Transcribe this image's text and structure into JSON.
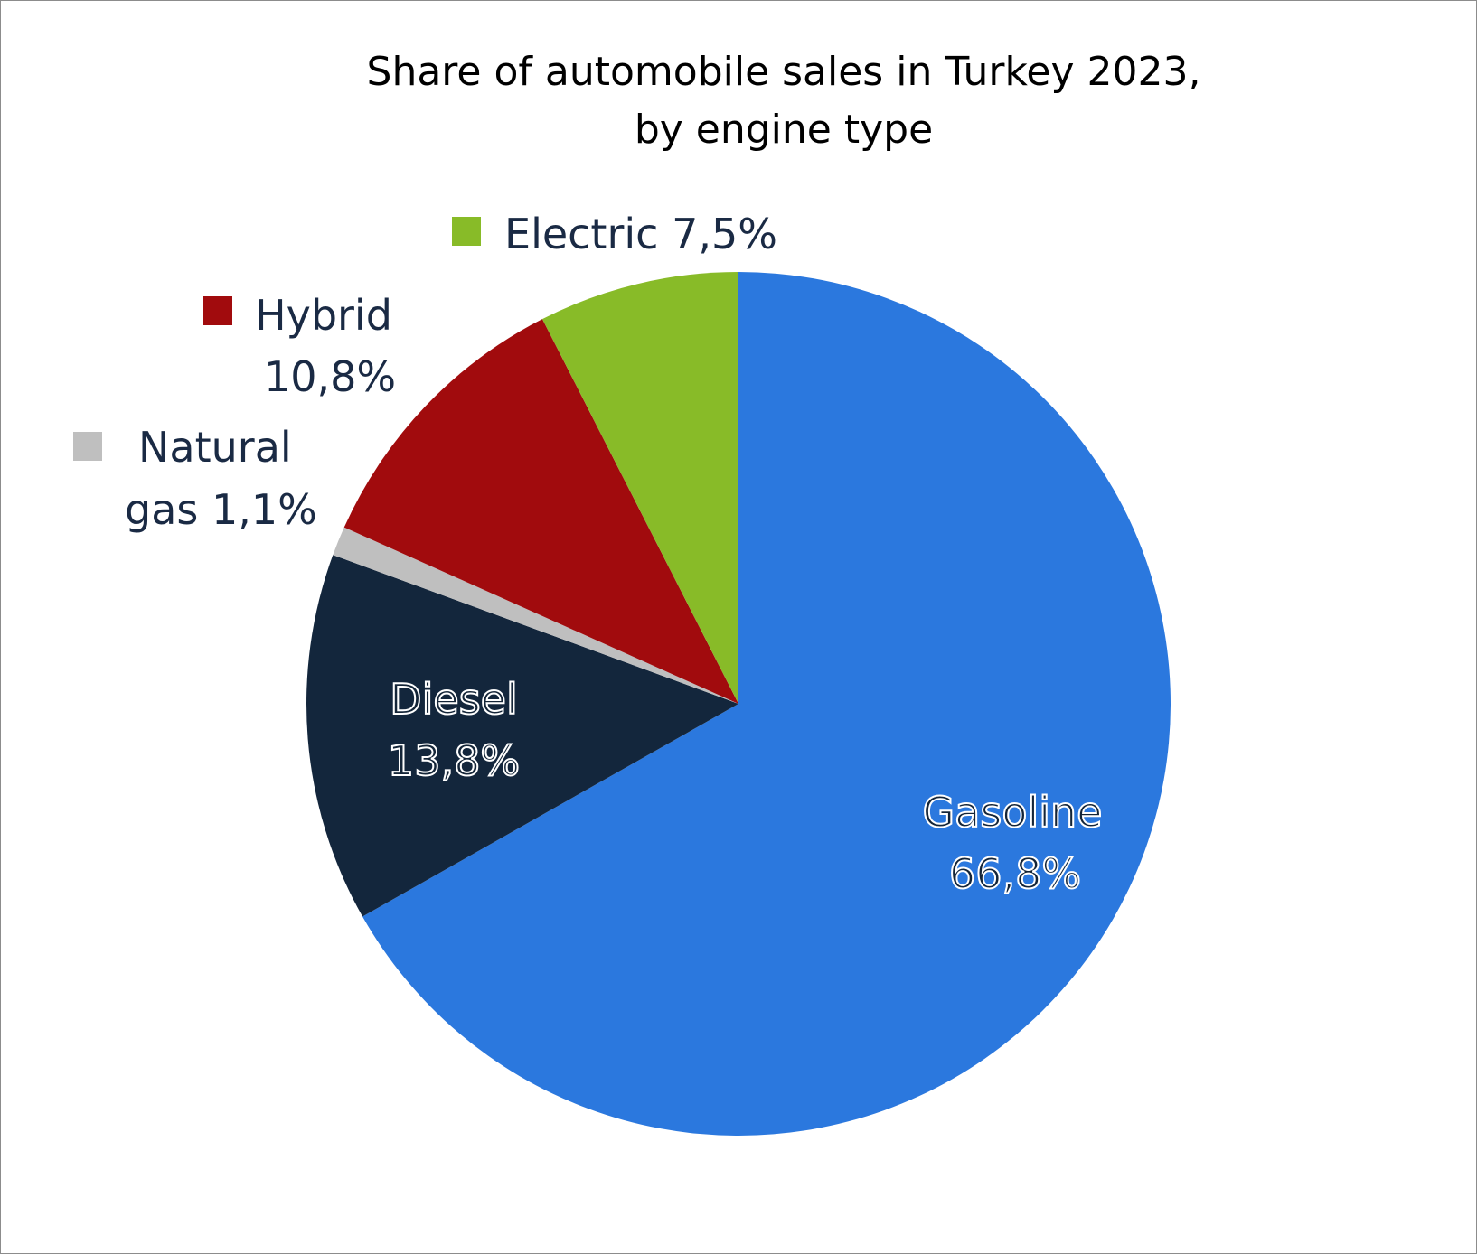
{
  "chart_data": {
    "type": "pie",
    "title_line1": "Share of automobile sales in Turkey 2023,",
    "title_line2": "by engine type",
    "start_angle_deg": 0,
    "direction": "clockwise",
    "slices": [
      {
        "key": "gasoline",
        "name": "Gasoline",
        "value": 66.8,
        "label": "66,8%",
        "color": "#2b78de",
        "label_style": "inside"
      },
      {
        "key": "diesel",
        "name": "Diesel",
        "value": 13.8,
        "label": "13,8%",
        "color": "#13263c",
        "label_style": "inside"
      },
      {
        "key": "naturalgas",
        "name": "Natural gas",
        "name_line1": "Natural",
        "name_line2": "gas 1,1%",
        "value": 1.1,
        "label": "1,1%",
        "color": "#bfbfbf",
        "label_style": "outside"
      },
      {
        "key": "hybrid",
        "name": "Hybrid",
        "value": 10.8,
        "label": "10,8%",
        "color": "#a10b0d",
        "label_style": "outside"
      },
      {
        "key": "electric",
        "name": "Electric",
        "value": 7.5,
        "label": "7,5%",
        "name_line1": "Electric 7,5%",
        "color": "#88bb28",
        "label_style": "outside"
      }
    ]
  }
}
